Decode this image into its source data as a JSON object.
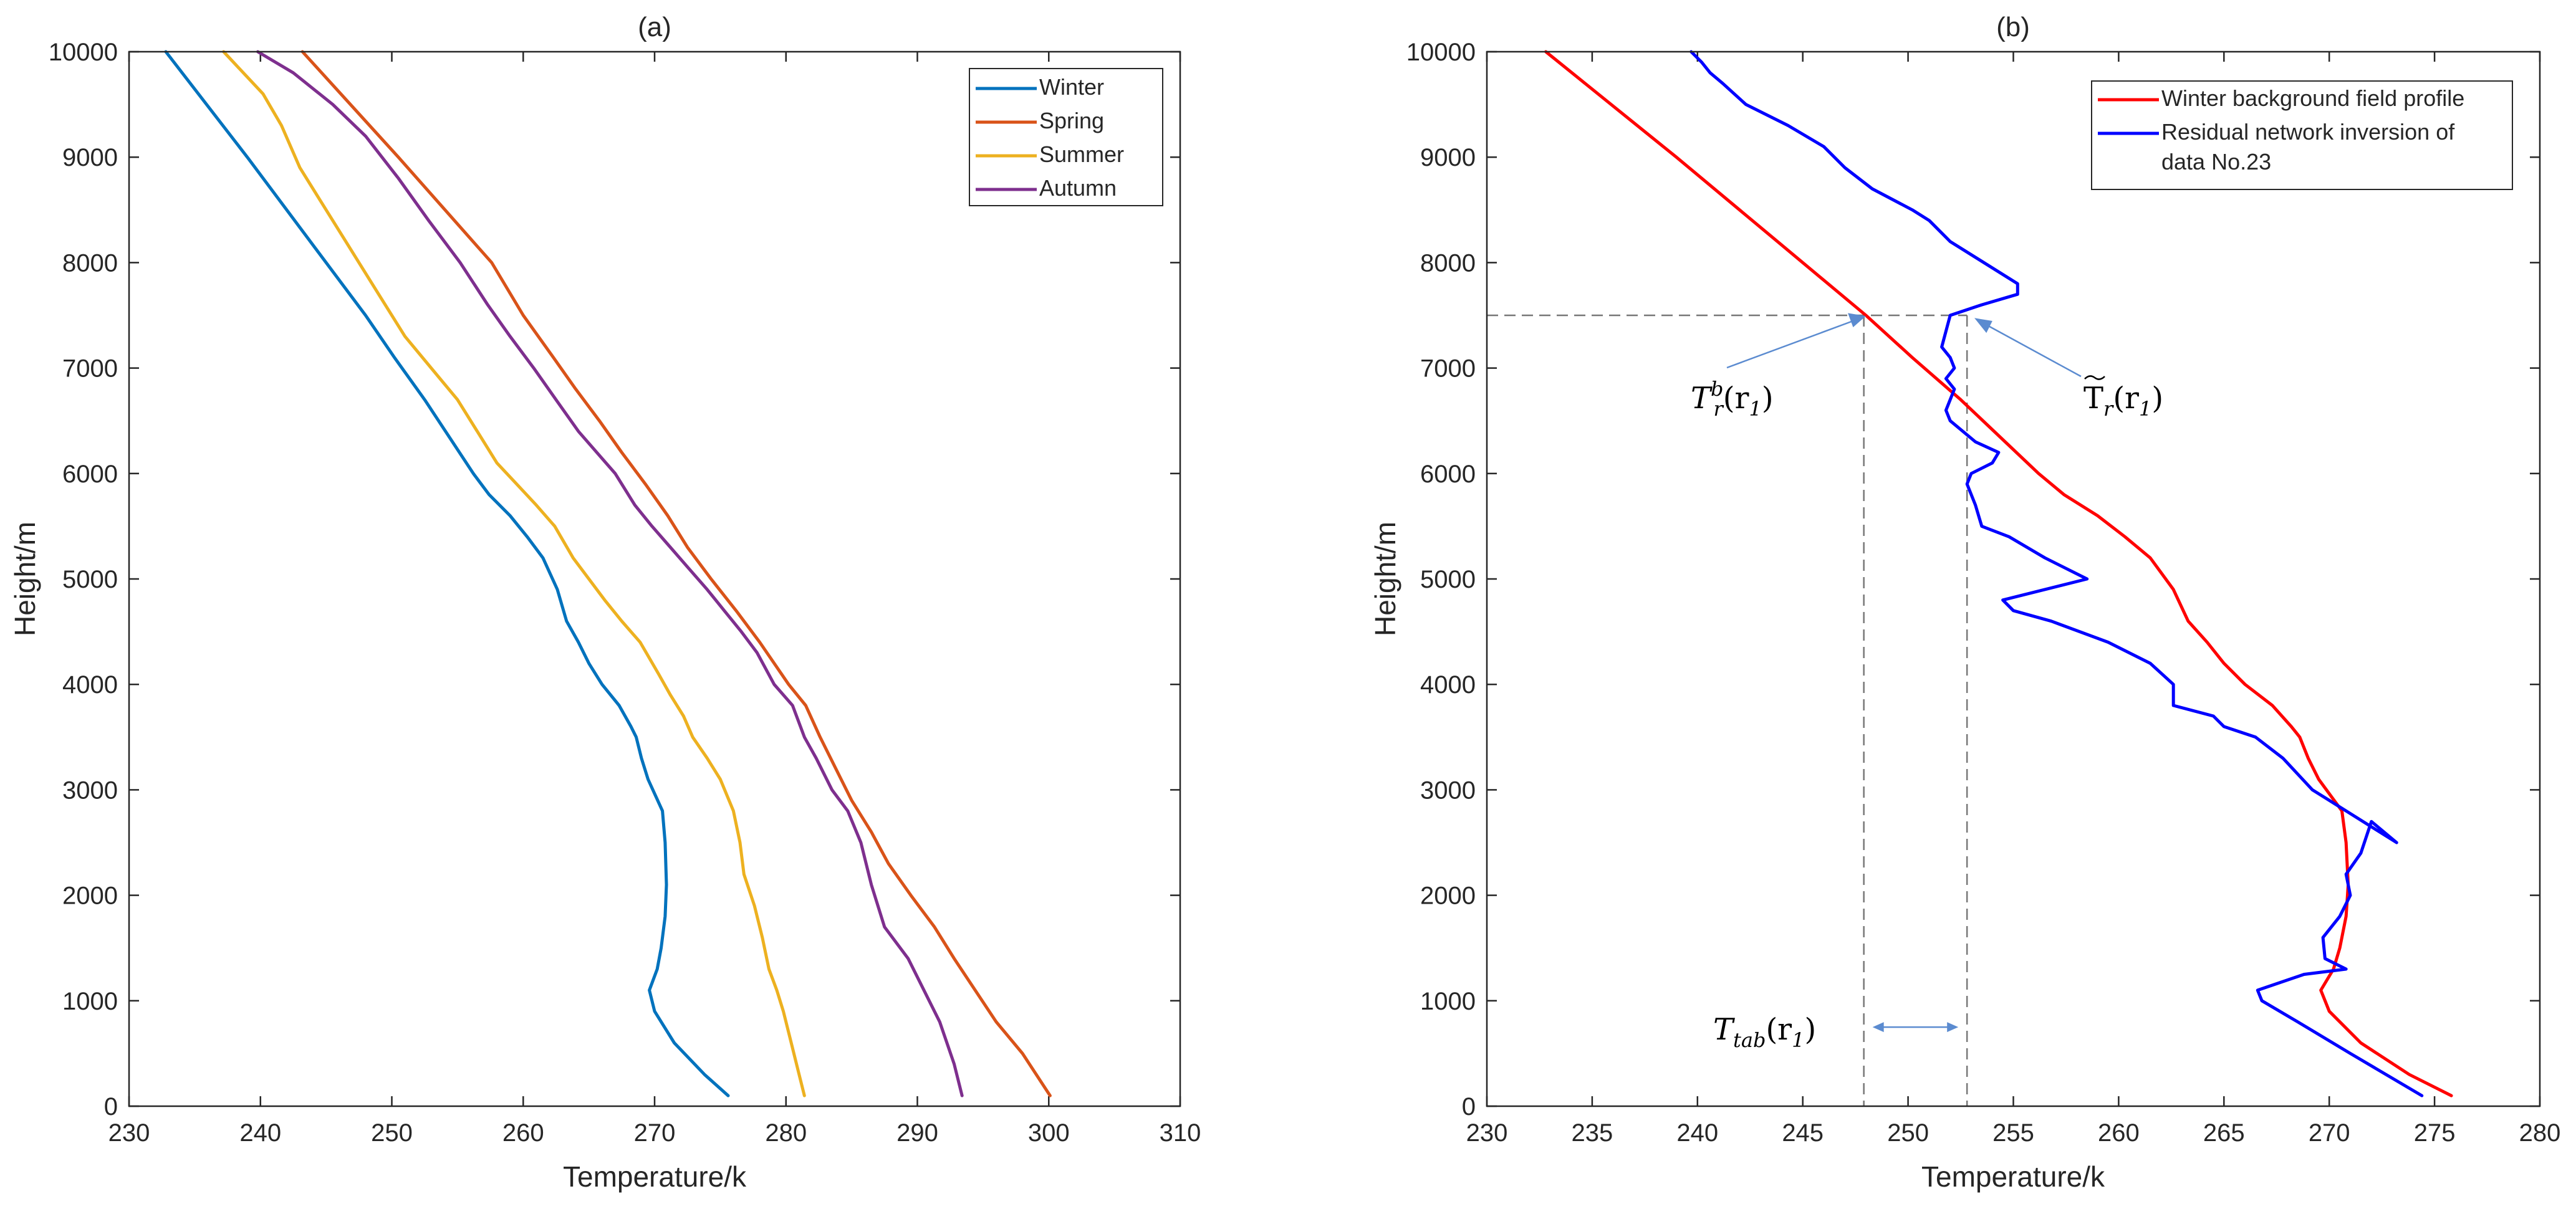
{
  "chart_data": [
    {
      "type": "line",
      "title": "(a)",
      "xlabel": "Temperature/k",
      "ylabel": "Height/m",
      "xlim": [
        230,
        310
      ],
      "ylim": [
        0,
        10000
      ],
      "xticks": [
        230,
        240,
        250,
        260,
        270,
        280,
        290,
        300,
        310
      ],
      "yticks": [
        0,
        1000,
        2000,
        3000,
        4000,
        5000,
        6000,
        7000,
        8000,
        9000,
        10000
      ],
      "legend": "top-right",
      "series": [
        {
          "name": "Winter",
          "color": "#0072BD",
          "points": [
            [
              275.6,
              100
            ],
            [
              273.8,
              300
            ],
            [
              271.5,
              600
            ],
            [
              270.0,
              900
            ],
            [
              269.6,
              1100
            ],
            [
              270.2,
              1300
            ],
            [
              270.5,
              1500
            ],
            [
              270.8,
              1800
            ],
            [
              270.9,
              2100
            ],
            [
              270.8,
              2500
            ],
            [
              270.6,
              2800
            ],
            [
              269.5,
              3100
            ],
            [
              269.0,
              3300
            ],
            [
              268.6,
              3500
            ],
            [
              268.2,
              3600
            ],
            [
              267.3,
              3800
            ],
            [
              266.0,
              4000
            ],
            [
              265.0,
              4200
            ],
            [
              264.2,
              4400
            ],
            [
              263.3,
              4600
            ],
            [
              262.6,
              4900
            ],
            [
              261.5,
              5200
            ],
            [
              260.3,
              5400
            ],
            [
              259.0,
              5600
            ],
            [
              257.4,
              5800
            ],
            [
              256.2,
              6000
            ],
            [
              252.5,
              6700
            ],
            [
              250.2,
              7100
            ],
            [
              248.0,
              7500
            ],
            [
              245.0,
              8000
            ],
            [
              239.0,
              9000
            ],
            [
              232.8,
              10000
            ]
          ]
        },
        {
          "name": "Spring",
          "color": "#D95319",
          "points": [
            [
              300.1,
              100
            ],
            [
              298.0,
              500
            ],
            [
              296.0,
              800
            ],
            [
              294.4,
              1100
            ],
            [
              292.8,
              1400
            ],
            [
              291.3,
              1700
            ],
            [
              289.5,
              2000
            ],
            [
              287.8,
              2300
            ],
            [
              286.5,
              2600
            ],
            [
              285.0,
              2900
            ],
            [
              283.8,
              3200
            ],
            [
              282.6,
              3500
            ],
            [
              281.5,
              3800
            ],
            [
              280.2,
              4000
            ],
            [
              278.0,
              4400
            ],
            [
              276.2,
              4700
            ],
            [
              274.3,
              5000
            ],
            [
              272.5,
              5300
            ],
            [
              271.0,
              5600
            ],
            [
              269.3,
              5900
            ],
            [
              267.5,
              6200
            ],
            [
              265.8,
              6500
            ],
            [
              264.0,
              6800
            ],
            [
              262.3,
              7100
            ],
            [
              260.0,
              7500
            ],
            [
              257.6,
              8000
            ],
            [
              250.5,
              9000
            ],
            [
              243.2,
              10000
            ]
          ]
        },
        {
          "name": "Summer",
          "color": "#EDB120",
          "points": [
            [
              281.4,
              100
            ],
            [
              281.0,
              300
            ],
            [
              280.4,
              600
            ],
            [
              279.8,
              900
            ],
            [
              279.3,
              1100
            ],
            [
              278.7,
              1300
            ],
            [
              278.2,
              1600
            ],
            [
              277.6,
              1900
            ],
            [
              276.8,
              2200
            ],
            [
              276.5,
              2500
            ],
            [
              276.0,
              2800
            ],
            [
              275.0,
              3100
            ],
            [
              274.0,
              3300
            ],
            [
              272.9,
              3500
            ],
            [
              272.2,
              3700
            ],
            [
              271.2,
              3900
            ],
            [
              270.3,
              4100
            ],
            [
              268.9,
              4400
            ],
            [
              267.5,
              4600
            ],
            [
              266.2,
              4800
            ],
            [
              265.0,
              5000
            ],
            [
              263.8,
              5200
            ],
            [
              262.4,
              5500
            ],
            [
              261.0,
              5700
            ],
            [
              259.5,
              5900
            ],
            [
              258.0,
              6100
            ],
            [
              256.5,
              6400
            ],
            [
              255.0,
              6700
            ],
            [
              253.0,
              7000
            ],
            [
              251.0,
              7300
            ],
            [
              249.0,
              7700
            ],
            [
              247.5,
              8000
            ],
            [
              244.5,
              8600
            ],
            [
              243.0,
              8900
            ],
            [
              241.6,
              9300
            ],
            [
              240.2,
              9600
            ],
            [
              237.2,
              10000
            ]
          ]
        },
        {
          "name": "Autumn",
          "color": "#7E2F8E",
          "points": [
            [
              293.4,
              100
            ],
            [
              292.8,
              400
            ],
            [
              291.7,
              800
            ],
            [
              290.5,
              1100
            ],
            [
              289.3,
              1400
            ],
            [
              287.5,
              1700
            ],
            [
              286.5,
              2100
            ],
            [
              285.7,
              2500
            ],
            [
              284.7,
              2800
            ],
            [
              283.5,
              3000
            ],
            [
              282.3,
              3300
            ],
            [
              281.4,
              3500
            ],
            [
              280.5,
              3800
            ],
            [
              279.1,
              4000
            ],
            [
              277.8,
              4300
            ],
            [
              276.6,
              4500
            ],
            [
              275.3,
              4700
            ],
            [
              274.0,
              4900
            ],
            [
              272.6,
              5100
            ],
            [
              271.2,
              5300
            ],
            [
              269.8,
              5500
            ],
            [
              268.5,
              5700
            ],
            [
              267.0,
              6000
            ],
            [
              265.6,
              6200
            ],
            [
              264.2,
              6400
            ],
            [
              262.5,
              6700
            ],
            [
              260.8,
              7000
            ],
            [
              259.0,
              7300
            ],
            [
              257.3,
              7600
            ],
            [
              255.2,
              8000
            ],
            [
              252.8,
              8400
            ],
            [
              250.5,
              8800
            ],
            [
              248.0,
              9200
            ],
            [
              245.5,
              9500
            ],
            [
              242.5,
              9800
            ],
            [
              239.8,
              10000
            ]
          ]
        }
      ]
    },
    {
      "type": "line",
      "title": "(b)",
      "xlabel": "Temperature/k",
      "ylabel": "Height/m",
      "xlim": [
        230,
        280
      ],
      "ylim": [
        0,
        10000
      ],
      "xticks": [
        230,
        235,
        240,
        245,
        250,
        255,
        260,
        265,
        270,
        275,
        280
      ],
      "yticks": [
        0,
        1000,
        2000,
        3000,
        4000,
        5000,
        6000,
        7000,
        8000,
        9000,
        10000
      ],
      "legend": "top-right",
      "series": [
        {
          "name": "Winter background field profile",
          "color": "#FF0000",
          "points": [
            [
              275.8,
              100
            ],
            [
              273.8,
              300
            ],
            [
              271.5,
              600
            ],
            [
              270.0,
              900
            ],
            [
              269.6,
              1100
            ],
            [
              270.2,
              1300
            ],
            [
              270.5,
              1500
            ],
            [
              270.8,
              1800
            ],
            [
              270.9,
              2100
            ],
            [
              270.8,
              2500
            ],
            [
              270.6,
              2800
            ],
            [
              269.5,
              3100
            ],
            [
              269.0,
              3300
            ],
            [
              268.6,
              3500
            ],
            [
              268.2,
              3600
            ],
            [
              267.3,
              3800
            ],
            [
              266.0,
              4000
            ],
            [
              265.0,
              4200
            ],
            [
              264.2,
              4400
            ],
            [
              263.3,
              4600
            ],
            [
              262.6,
              4900
            ],
            [
              261.5,
              5200
            ],
            [
              260.3,
              5400
            ],
            [
              259.0,
              5600
            ],
            [
              257.4,
              5800
            ],
            [
              256.2,
              6000
            ],
            [
              252.5,
              6700
            ],
            [
              250.2,
              7100
            ],
            [
              248.0,
              7500
            ],
            [
              245.0,
              8000
            ],
            [
              239.0,
              9000
            ],
            [
              232.8,
              10000
            ]
          ]
        },
        {
          "name": "Residual network inversion of data No.23",
          "color": "#0000FF",
          "points": [
            [
              274.4,
              100
            ],
            [
              271.0,
              500
            ],
            [
              268.5,
              800
            ],
            [
              266.8,
              1000
            ],
            [
              266.6,
              1100
            ],
            [
              268.8,
              1250
            ],
            [
              270.8,
              1300
            ],
            [
              269.8,
              1400
            ],
            [
              269.7,
              1600
            ],
            [
              270.5,
              1800
            ],
            [
              271.0,
              2000
            ],
            [
              270.8,
              2200
            ],
            [
              271.5,
              2400
            ],
            [
              272.0,
              2700
            ],
            [
              273.2,
              2500
            ],
            [
              270.0,
              2900
            ],
            [
              269.2,
              3000
            ],
            [
              267.8,
              3300
            ],
            [
              266.5,
              3500
            ],
            [
              265.0,
              3600
            ],
            [
              264.5,
              3700
            ],
            [
              262.6,
              3800
            ],
            [
              262.6,
              4000
            ],
            [
              261.5,
              4200
            ],
            [
              259.5,
              4400
            ],
            [
              256.8,
              4600
            ],
            [
              255.0,
              4700
            ],
            [
              254.5,
              4800
            ],
            [
              258.5,
              5000
            ],
            [
              256.5,
              5200
            ],
            [
              254.8,
              5400
            ],
            [
              253.5,
              5500
            ],
            [
              253.2,
              5700
            ],
            [
              252.8,
              5900
            ],
            [
              253.0,
              6000
            ],
            [
              254.0,
              6100
            ],
            [
              254.3,
              6200
            ],
            [
              253.2,
              6300
            ],
            [
              252.0,
              6500
            ],
            [
              251.8,
              6600
            ],
            [
              252.2,
              6800
            ],
            [
              251.8,
              6900
            ],
            [
              252.2,
              7000
            ],
            [
              252.0,
              7100
            ],
            [
              251.6,
              7200
            ],
            [
              252.0,
              7500
            ],
            [
              253.5,
              7600
            ],
            [
              255.2,
              7700
            ],
            [
              255.2,
              7800
            ],
            [
              252.0,
              8200
            ],
            [
              251.0,
              8400
            ],
            [
              250.2,
              8500
            ],
            [
              248.3,
              8700
            ],
            [
              247.0,
              8900
            ],
            [
              246.0,
              9100
            ],
            [
              244.3,
              9300
            ],
            [
              242.3,
              9500
            ],
            [
              241.2,
              9700
            ],
            [
              240.6,
              9800
            ],
            [
              240.2,
              9900
            ],
            [
              239.7,
              10000
            ]
          ]
        }
      ],
      "guides": {
        "horizontal_y": 7500,
        "vertical_x": [
          247.9,
          252.8
        ],
        "arrow_y": 750
      },
      "annotations": {
        "left": {
          "base": "T",
          "sup": "b",
          "sub": "r",
          "arg": "(r",
          "argsub": "1",
          "close": ")"
        },
        "right": {
          "base": "T",
          "sub": "r",
          "arg": "(r",
          "argsub": "1",
          "close": ")"
        },
        "bottom": {
          "base": "T",
          "sub": "tab",
          "arg": "(r",
          "argsub": "1",
          "close": ")"
        }
      }
    }
  ]
}
